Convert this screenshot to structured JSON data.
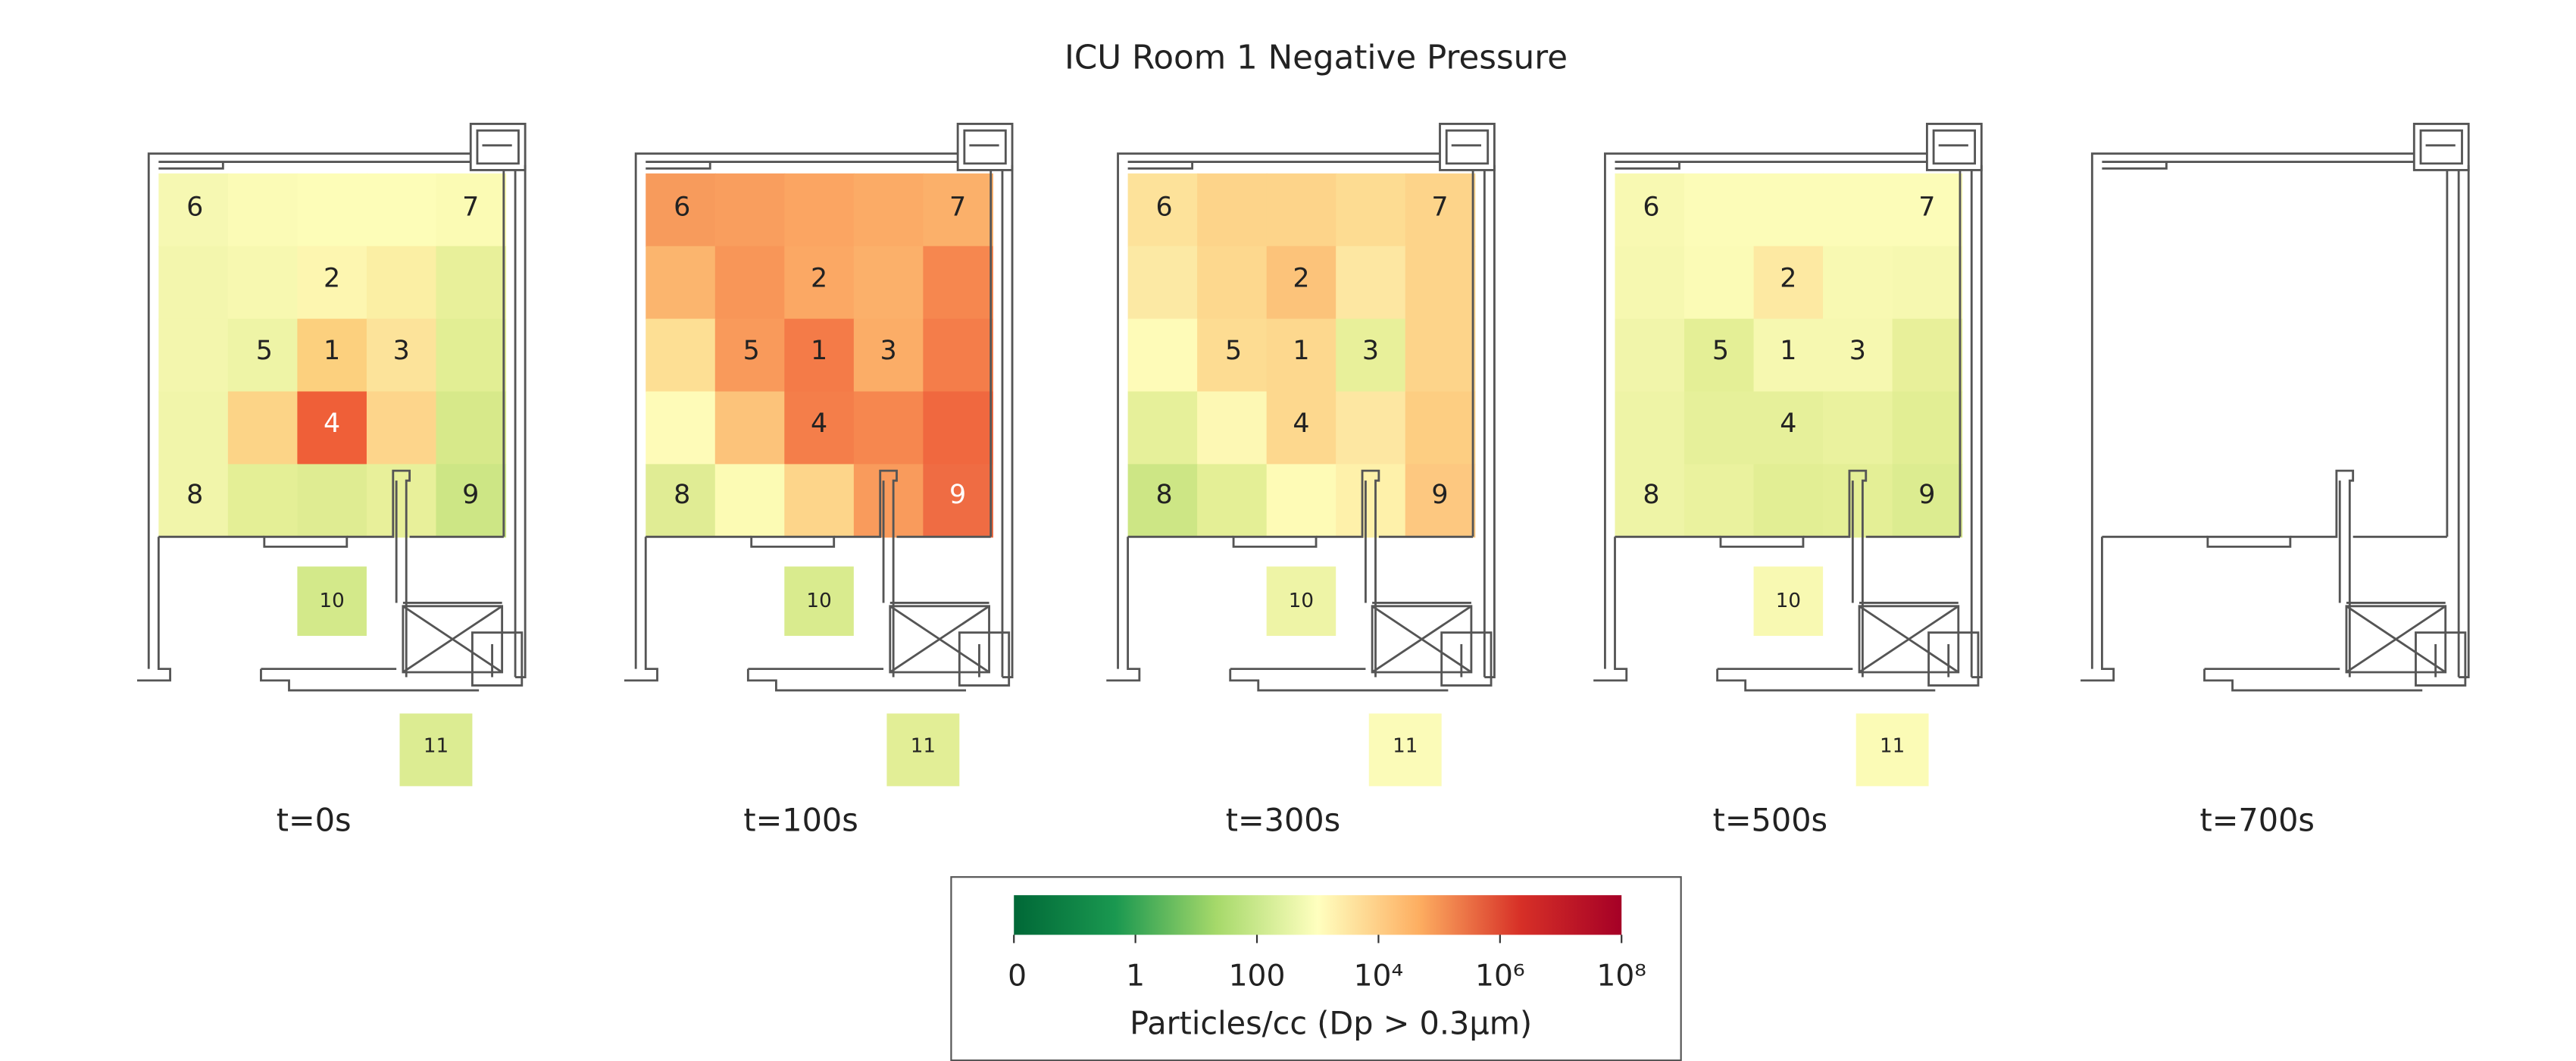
{
  "title": "ICU Room 1 Negative Pressure",
  "sensors": [
    "6",
    "7",
    "2",
    "5",
    "1",
    "3",
    "4",
    "8",
    "9",
    "10",
    "11"
  ],
  "panels": [
    {
      "label": "t=0s",
      "cells": [
        [
          "#f6f8b2",
          "#fbfbb6",
          "#fdfdb8",
          "#fdfdb8",
          "#fbfbb4"
        ],
        [
          "#f3f6ad",
          "#f7f8b0",
          "#fdf6b0",
          "#fbefa4",
          "#e8f09a"
        ],
        [
          "#f3f6ad",
          "#eef4a6",
          "#fcd07e",
          "#fce39a",
          "#e2ee94"
        ],
        [
          "#f1f5aa",
          "#fcd487",
          "#ef5f38",
          "#fdd58b",
          "#d7e98a"
        ],
        [
          "#f1f5aa",
          "#e4ef96",
          "#dfec92",
          "#e8f09a",
          "#cde685"
        ]
      ],
      "box_colors": [
        "#d3e98a",
        "#dcec92"
      ]
    },
    {
      "label": "t=100s",
      "cells": [
        [
          "#f79b5c",
          "#f99e5e",
          "#fba562",
          "#fbab66",
          "#fbb06a"
        ],
        [
          "#fbb56e",
          "#f89658",
          "#fba864",
          "#fbb06a",
          "#f6874f"
        ],
        [
          "#fddf94",
          "#f99a5b",
          "#f47b48",
          "#fbad67",
          "#f47d4a"
        ],
        [
          "#fefbb8",
          "#fcc37a",
          "#f47e4a",
          "#f6874f",
          "#f0683f"
        ],
        [
          "#e0ec94",
          "#fcfbb4",
          "#fdd58a",
          "#f99b5c",
          "#ef6c43"
        ]
      ],
      "box_colors": [
        "#d9eb8e",
        "#e2ee96"
      ]
    },
    {
      "label": "t=300s",
      "cells": [
        [
          "#fde29a",
          "#fdd48a",
          "#fdd48a",
          "#fddc92",
          "#fdd48a"
        ],
        [
          "#fce9a4",
          "#fdd88e",
          "#fcc37a",
          "#fde7a2",
          "#fdd48a"
        ],
        [
          "#fefbb8",
          "#fddc92",
          "#fdd88e",
          "#e8f09a",
          "#fdd48a"
        ],
        [
          "#e6f09a",
          "#fdf8b4",
          "#fdd88e",
          "#fde7a2",
          "#fdce82"
        ],
        [
          "#cde685",
          "#e4ef96",
          "#fefbb6",
          "#fef1aa",
          "#fdc880"
        ]
      ],
      "box_colors": [
        "#eef4a6",
        "#fbfbb8"
      ]
    },
    {
      "label": "t=500s",
      "cells": [
        [
          "#f8f9b2",
          "#fcfcb8",
          "#fcfcb8",
          "#fcfcb8",
          "#fcfcb8"
        ],
        [
          "#f6f8b0",
          "#fbfbb6",
          "#fde9a2",
          "#f8f9b2",
          "#f6f8b0"
        ],
        [
          "#f1f5aa",
          "#e4ef96",
          "#f6f8b0",
          "#f6f8b0",
          "#e8f09a"
        ],
        [
          "#eef4a6",
          "#e6f09a",
          "#e6f09a",
          "#eaf29e",
          "#e2ee94"
        ],
        [
          "#eef4a6",
          "#eaf29e",
          "#e2ee94",
          "#e4ef96",
          "#dcec90"
        ]
      ],
      "box_colors": [
        "#f8f9b2",
        "#fbfbb6"
      ]
    },
    {
      "label": "t=700s"
    }
  ],
  "colorbar": {
    "label": "Particles/cc (Dp > 0.3μm)",
    "ticks": [
      0,
      1,
      100,
      {
        "value": 10000,
        "label": "10⁴"
      },
      {
        "value": 1000000,
        "label": "10⁶"
      },
      {
        "value": 100000000,
        "label": "10⁸"
      }
    ],
    "colors": [
      "#006837",
      "#1a9850",
      "#a6d96a",
      "#ffffbf",
      "#fdae61",
      "#d73027",
      "#a50026"
    ]
  }
}
